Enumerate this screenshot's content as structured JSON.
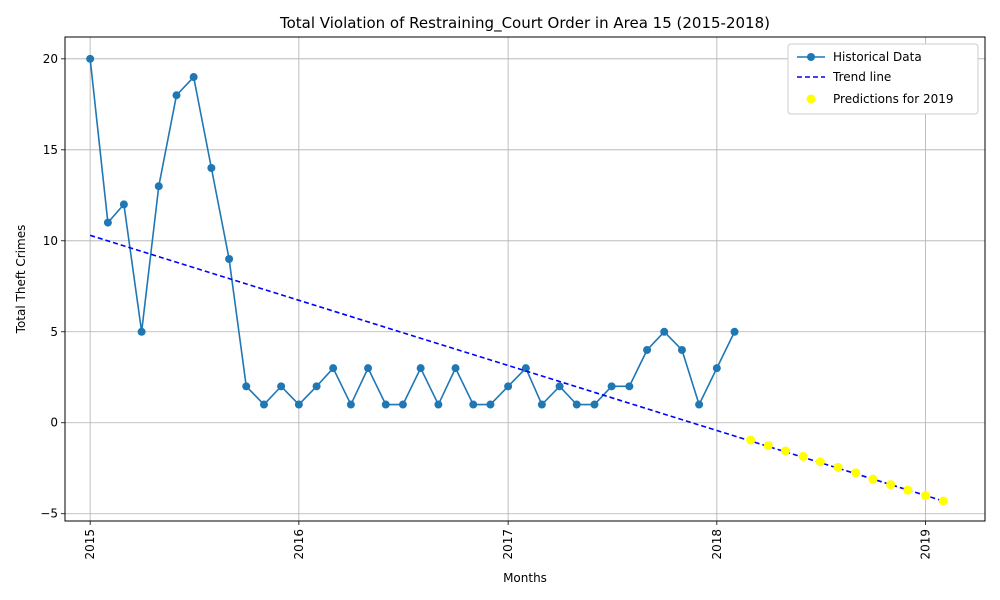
{
  "chart_data": {
    "type": "line",
    "title": "Total Violation of Restraining_Court Order in Area 15 (2015-2018)",
    "xlabel": "Months",
    "ylabel": "Total Theft Crimes",
    "x_ticks": [
      "2015",
      "2016",
      "2017",
      "2018",
      "2019"
    ],
    "y_ticks": [
      "−5",
      "0",
      "5",
      "10",
      "15",
      "20"
    ],
    "xlim": [
      "2014-11-18",
      "2019-04-15"
    ],
    "ylim": [
      -5.4,
      21.2
    ],
    "grid": true,
    "legend_position": "upper-right",
    "series": [
      {
        "name": "Historical Data",
        "style": "line-markers",
        "color": "#1f77b4",
        "x": [
          "2015-01",
          "2015-02",
          "2015-03",
          "2015-04",
          "2015-05",
          "2015-06",
          "2015-07",
          "2015-08",
          "2015-09",
          "2015-10",
          "2015-11",
          "2015-12",
          "2016-01",
          "2016-02",
          "2016-03",
          "2016-04",
          "2016-05",
          "2016-06",
          "2016-07",
          "2016-08",
          "2016-09",
          "2016-10",
          "2016-11",
          "2016-12",
          "2017-01",
          "2017-02",
          "2017-03",
          "2017-04",
          "2017-05",
          "2017-06",
          "2017-07",
          "2017-08",
          "2017-09",
          "2017-10",
          "2017-11",
          "2017-12",
          "2018-01",
          "2018-02"
        ],
        "values": [
          20,
          11,
          12,
          5,
          13,
          18,
          19,
          14,
          9,
          2,
          1,
          2,
          1,
          2,
          3,
          1,
          3,
          1,
          1,
          3,
          1,
          3,
          1,
          1,
          2,
          3,
          1,
          2,
          1,
          1,
          2,
          2,
          4,
          5,
          4,
          1,
          3,
          5
        ]
      },
      {
        "name": "Trend line",
        "style": "dashed",
        "color": "#0000ff",
        "x": [
          "2015-01",
          "2019-02"
        ],
        "values": [
          10.3,
          -4.3
        ]
      },
      {
        "name": "Predictions for 2019",
        "style": "scatter",
        "color": "#ffff00",
        "x": [
          "2018-03",
          "2018-04",
          "2018-05",
          "2018-06",
          "2018-07",
          "2018-08",
          "2018-09",
          "2018-10",
          "2018-11",
          "2018-12",
          "2019-01",
          "2019-02"
        ],
        "values": [
          -0.95,
          -1.25,
          -1.55,
          -1.85,
          -2.15,
          -2.45,
          -2.75,
          -3.1,
          -3.4,
          -3.7,
          -4.0,
          -4.3
        ]
      }
    ]
  }
}
